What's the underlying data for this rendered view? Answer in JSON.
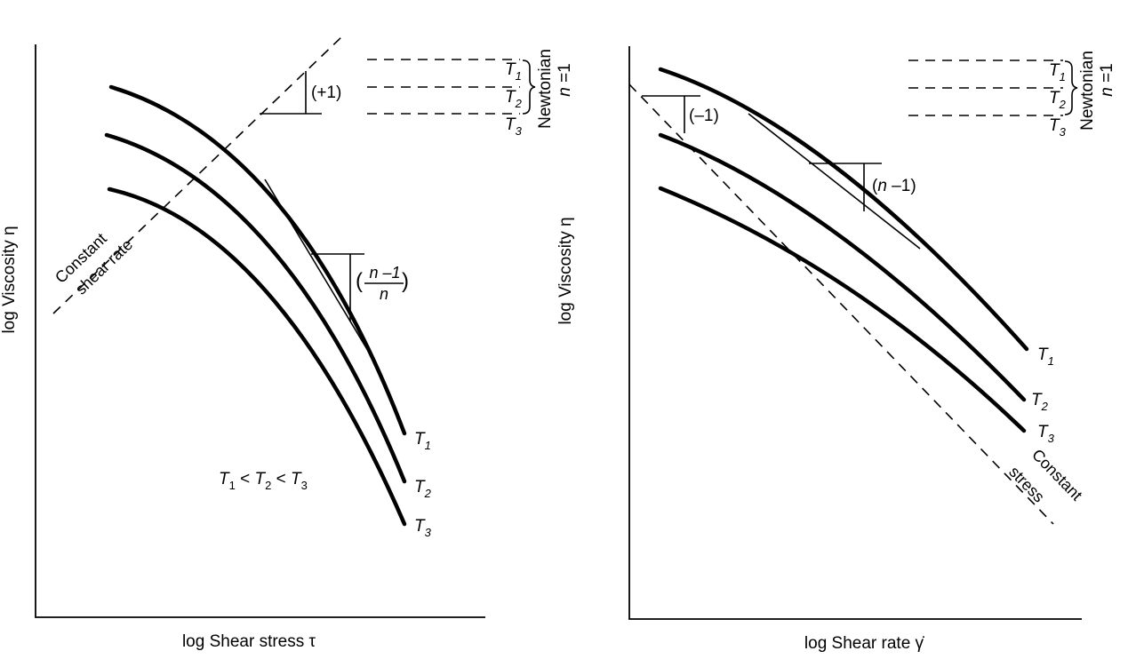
{
  "chart_data": [
    {
      "type": "line",
      "xlabel": "log Shear stress τ",
      "ylabel": "log Viscosity η",
      "series": [
        {
          "name": "T1",
          "label": "T",
          "sub": "1"
        },
        {
          "name": "T2",
          "label": "T",
          "sub": "2"
        },
        {
          "name": "T3",
          "label": "T",
          "sub": "3"
        }
      ],
      "newtonian": {
        "labels": [
          {
            "label": "T",
            "sub": "1"
          },
          {
            "label": "T",
            "sub": "2"
          },
          {
            "label": "T",
            "sub": "3"
          }
        ],
        "title": "Newtonian",
        "n_label": "n",
        "n_eq": " =1"
      },
      "annotations": {
        "constant_line": [
          "Constant",
          "shear rate"
        ],
        "slope_plus": "(+1)",
        "slope_frac": {
          "open": "(",
          "num": "n –1",
          "den": "n",
          "close": ")"
        },
        "order": {
          "t": "T",
          "s1": "1",
          "lt1": " < ",
          "s2": "2",
          "lt2": " < ",
          "s3": "3"
        }
      }
    },
    {
      "type": "line",
      "xlabel": "log Shear rate γ̇",
      "ylabel": "log Viscosity η",
      "series": [
        {
          "name": "T1",
          "label": "T",
          "sub": "1"
        },
        {
          "name": "T2",
          "label": "T",
          "sub": "2"
        },
        {
          "name": "T3",
          "label": "T",
          "sub": "3"
        }
      ],
      "newtonian": {
        "labels": [
          {
            "label": "T",
            "sub": "1"
          },
          {
            "label": "T",
            "sub": "2"
          },
          {
            "label": "T",
            "sub": "3"
          }
        ],
        "title": "Newtonian",
        "n_label": "n",
        "n_eq": " =1"
      },
      "annotations": {
        "constant_line": [
          "Constant",
          "stress"
        ],
        "slope_minus": "(–1)",
        "slope_n": {
          "open": "(",
          "n": "n",
          "rest": " –1)"
        }
      }
    }
  ]
}
